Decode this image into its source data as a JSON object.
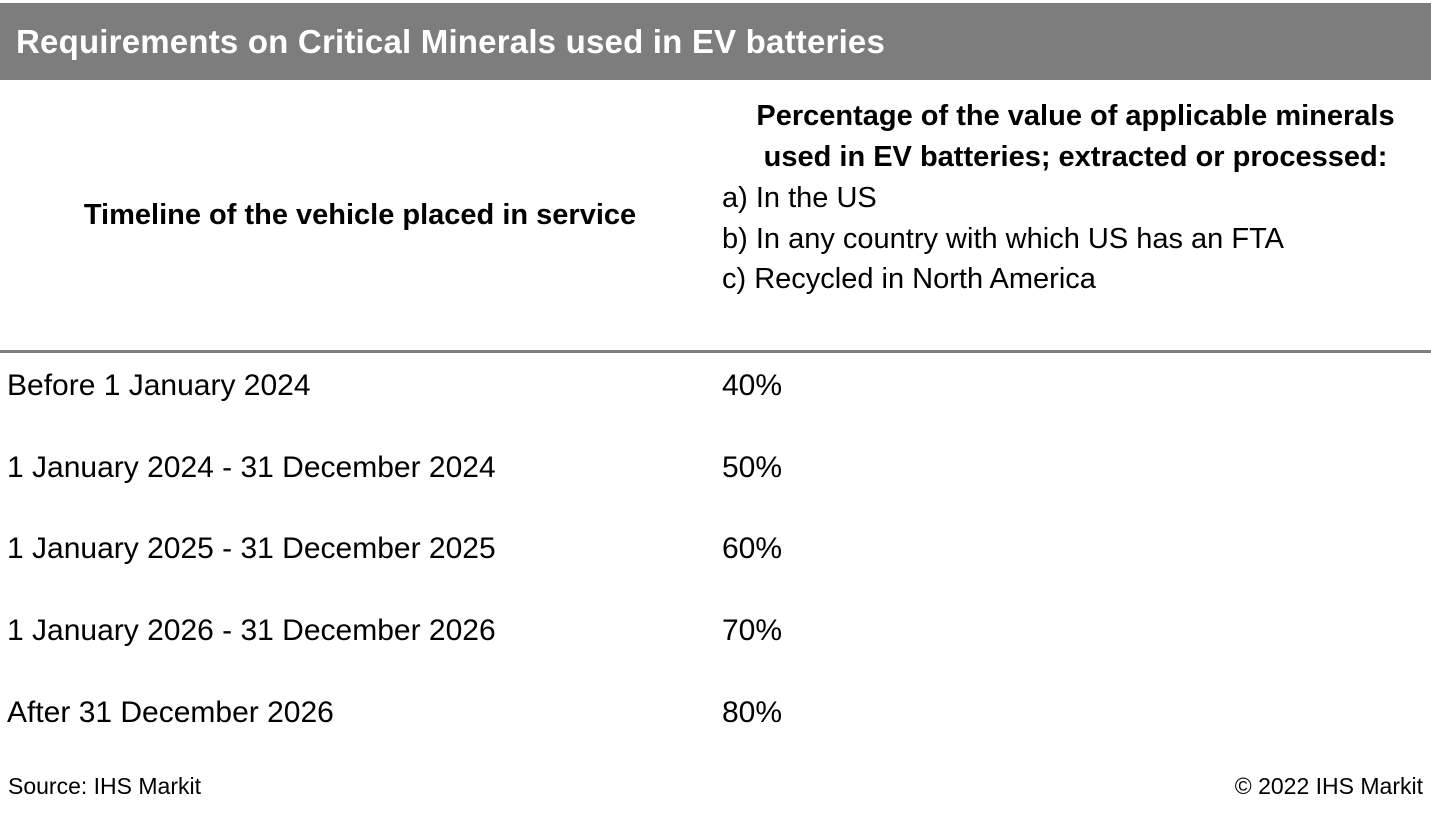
{
  "chart_data": {
    "type": "table",
    "title": "Requirements on Critical Minerals used in EV batteries",
    "col1_header": "Timeline of the vehicle placed in service",
    "col2_header_main": "Percentage of the value of applicable minerals used in EV batteries; extracted or processed:",
    "col2_header_items": [
      "a) In the US",
      "b) In any country with which US has an FTA",
      "c) Recycled in North America"
    ],
    "rows": [
      {
        "timeline": "Before 1 January 2024",
        "value": "40%"
      },
      {
        "timeline": "1 January 2024 - 31 December 2024",
        "value": "50%"
      },
      {
        "timeline": "1 January 2025 - 31 December 2025",
        "value": "60%"
      },
      {
        "timeline": "1 January 2026 - 31 December 2026",
        "value": "70%"
      },
      {
        "timeline": "After 31 December 2026",
        "value": "80%"
      }
    ]
  },
  "footer": {
    "source": "Source: IHS Markit",
    "copyright": "© 2022 IHS Markit"
  },
  "colors": {
    "title_bar_bg": "#7d7d7d",
    "title_text": "#ffffff",
    "divider": "#808080",
    "text": "#000000",
    "background": "#ffffff"
  }
}
